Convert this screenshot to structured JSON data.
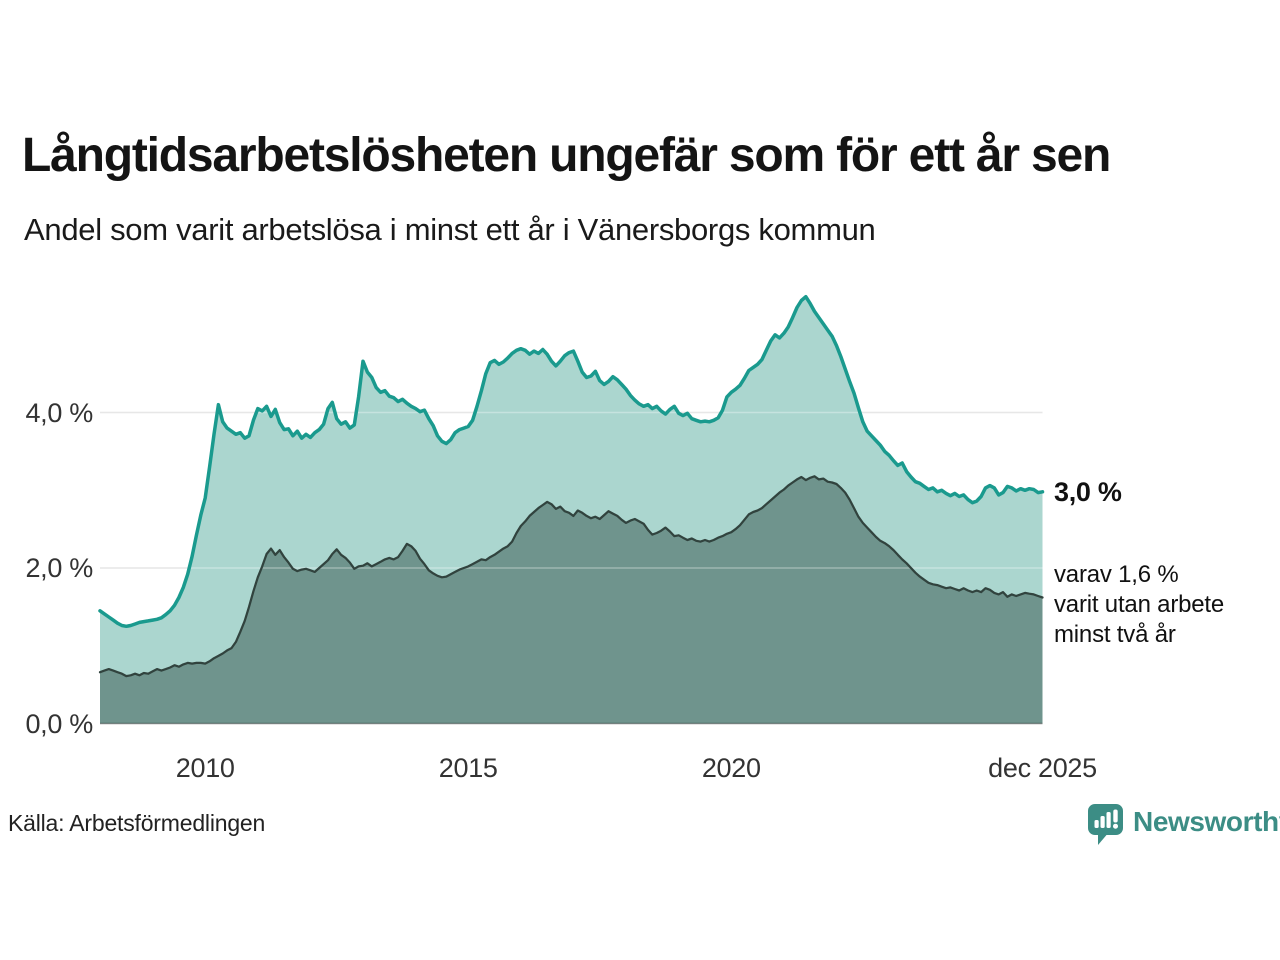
{
  "title": "Långtidsarbetslösheten ungefär som för ett år sen",
  "subtitle": "Andel som varit arbetslösa i minst ett år i Vänersborgs kommun",
  "source": "Källa: Arbetsförmedlingen",
  "branding": {
    "name": "Newsworthy",
    "color": "#3c8d85"
  },
  "annotations": {
    "end_value_label": "3,0 %",
    "sub_lines": [
      "varav 1,6 %",
      "varit utan arbete",
      "minst två år"
    ]
  },
  "colors": {
    "series1_line": "#1a9a8e",
    "series1_fill": "#abd6cf",
    "series2_line": "#31433e",
    "series2_fill": "#6f948d",
    "gridline": "#dcdcdc",
    "axis_text": "#333333"
  },
  "chart_data": {
    "type": "area",
    "title": "Långtidsarbetslösheten ungefär som för ett år sen",
    "subtitle": "Andel som varit arbetslösa i minst ett år i Vänersborgs kommun",
    "x_start": "2008-01",
    "x_end": "2025-12",
    "interval": "monthly",
    "ylim": [
      0,
      5.7
    ],
    "grid": "horizontal",
    "legend_position": "none (direct labels at line ends)",
    "y_ticks": [
      {
        "label": "0,0 %",
        "value": 0
      },
      {
        "label": "2,0 %",
        "value": 2
      },
      {
        "label": "4,0 %",
        "value": 4
      }
    ],
    "x_ticks": [
      {
        "label": "2010",
        "month_index": 24
      },
      {
        "label": "2015",
        "month_index": 84
      },
      {
        "label": "2020",
        "month_index": 144
      },
      {
        "label": "dec 2025",
        "month_index": 215
      }
    ],
    "series": [
      {
        "name": "Arbetslösa minst ett år (andel, %)",
        "end_label": "3,0 %",
        "color": "#1a9a8e",
        "fill": "#abd6cf",
        "stroke_width": 3.5,
        "values": [
          1.45,
          1.41,
          1.37,
          1.33,
          1.29,
          1.26,
          1.25,
          1.26,
          1.28,
          1.3,
          1.31,
          1.32,
          1.33,
          1.34,
          1.36,
          1.4,
          1.45,
          1.52,
          1.62,
          1.75,
          1.92,
          2.15,
          2.42,
          2.68,
          2.9,
          3.3,
          3.72,
          4.1,
          3.88,
          3.8,
          3.76,
          3.72,
          3.74,
          3.67,
          3.7,
          3.9,
          4.05,
          4.02,
          4.08,
          3.95,
          4.04,
          3.87,
          3.78,
          3.79,
          3.7,
          3.76,
          3.67,
          3.72,
          3.68,
          3.74,
          3.78,
          3.85,
          4.05,
          4.13,
          3.92,
          3.85,
          3.88,
          3.8,
          3.84,
          4.2,
          4.66,
          4.52,
          4.45,
          4.32,
          4.26,
          4.28,
          4.21,
          4.19,
          4.14,
          4.17,
          4.12,
          4.08,
          4.05,
          4.01,
          4.03,
          3.92,
          3.83,
          3.7,
          3.63,
          3.6,
          3.65,
          3.74,
          3.78,
          3.8,
          3.82,
          3.9,
          4.08,
          4.28,
          4.5,
          4.64,
          4.67,
          4.62,
          4.65,
          4.7,
          4.76,
          4.8,
          4.82,
          4.8,
          4.75,
          4.79,
          4.76,
          4.81,
          4.75,
          4.66,
          4.6,
          4.66,
          4.73,
          4.77,
          4.79,
          4.66,
          4.52,
          4.45,
          4.47,
          4.53,
          4.41,
          4.36,
          4.4,
          4.46,
          4.42,
          4.36,
          4.3,
          4.22,
          4.16,
          4.11,
          4.08,
          4.1,
          4.05,
          4.08,
          4.02,
          3.98,
          4.04,
          4.08,
          3.99,
          3.96,
          3.99,
          3.92,
          3.9,
          3.88,
          3.89,
          3.88,
          3.9,
          3.93,
          4.03,
          4.2,
          4.26,
          4.3,
          4.35,
          4.44,
          4.54,
          4.58,
          4.62,
          4.68,
          4.8,
          4.92,
          5.0,
          4.96,
          5.02,
          5.1,
          5.22,
          5.35,
          5.44,
          5.49,
          5.4,
          5.3,
          5.22,
          5.14,
          5.06,
          4.98,
          4.86,
          4.72,
          4.56,
          4.4,
          4.25,
          4.06,
          3.88,
          3.76,
          3.7,
          3.64,
          3.58,
          3.5,
          3.45,
          3.38,
          3.32,
          3.35,
          3.24,
          3.17,
          3.11,
          3.09,
          3.05,
          3.01,
          3.03,
          2.98,
          3.0,
          2.96,
          2.93,
          2.96,
          2.92,
          2.94,
          2.88,
          2.84,
          2.86,
          2.92,
          3.03,
          3.06,
          3.03,
          2.94,
          2.97,
          3.05,
          3.03,
          2.99,
          3.02,
          3.0,
          3.02,
          3.01,
          2.97,
          2.98
        ]
      },
      {
        "name": "varav arbetslösa minst två år (andel, %)",
        "end_label": "varav 1,6 % varit utan arbete minst två år",
        "color": "#31433e",
        "fill": "#6f948d",
        "stroke_width": 2.25,
        "values": [
          0.66,
          0.68,
          0.7,
          0.68,
          0.66,
          0.64,
          0.61,
          0.62,
          0.64,
          0.62,
          0.65,
          0.64,
          0.67,
          0.7,
          0.68,
          0.7,
          0.72,
          0.75,
          0.73,
          0.76,
          0.78,
          0.77,
          0.78,
          0.78,
          0.77,
          0.8,
          0.84,
          0.87,
          0.9,
          0.94,
          0.97,
          1.05,
          1.18,
          1.32,
          1.5,
          1.7,
          1.88,
          2.02,
          2.18,
          2.25,
          2.17,
          2.23,
          2.14,
          2.07,
          1.99,
          1.96,
          1.98,
          1.99,
          1.97,
          1.95,
          2.0,
          2.05,
          2.1,
          2.18,
          2.24,
          2.17,
          2.13,
          2.07,
          1.99,
          2.02,
          2.03,
          2.06,
          2.02,
          2.05,
          2.08,
          2.11,
          2.13,
          2.11,
          2.14,
          2.22,
          2.31,
          2.28,
          2.22,
          2.12,
          2.05,
          1.97,
          1.93,
          1.9,
          1.88,
          1.89,
          1.92,
          1.95,
          1.98,
          2.0,
          2.02,
          2.05,
          2.08,
          2.11,
          2.1,
          2.14,
          2.17,
          2.21,
          2.25,
          2.28,
          2.34,
          2.45,
          2.54,
          2.6,
          2.67,
          2.72,
          2.77,
          2.81,
          2.85,
          2.82,
          2.76,
          2.79,
          2.73,
          2.71,
          2.67,
          2.74,
          2.71,
          2.67,
          2.64,
          2.66,
          2.63,
          2.68,
          2.73,
          2.7,
          2.67,
          2.62,
          2.58,
          2.61,
          2.63,
          2.6,
          2.57,
          2.49,
          2.43,
          2.45,
          2.48,
          2.52,
          2.47,
          2.41,
          2.42,
          2.39,
          2.36,
          2.38,
          2.35,
          2.34,
          2.36,
          2.34,
          2.36,
          2.39,
          2.41,
          2.44,
          2.46,
          2.5,
          2.55,
          2.62,
          2.69,
          2.72,
          2.74,
          2.77,
          2.82,
          2.87,
          2.92,
          2.97,
          3.01,
          3.06,
          3.1,
          3.14,
          3.17,
          3.13,
          3.16,
          3.18,
          3.14,
          3.15,
          3.11,
          3.1,
          3.08,
          3.03,
          2.97,
          2.88,
          2.77,
          2.66,
          2.58,
          2.52,
          2.46,
          2.4,
          2.35,
          2.32,
          2.28,
          2.23,
          2.17,
          2.11,
          2.06,
          2.0,
          1.94,
          1.89,
          1.85,
          1.81,
          1.79,
          1.78,
          1.76,
          1.74,
          1.75,
          1.73,
          1.71,
          1.74,
          1.71,
          1.69,
          1.71,
          1.69,
          1.74,
          1.72,
          1.68,
          1.66,
          1.69,
          1.63,
          1.66,
          1.64,
          1.66,
          1.68,
          1.67,
          1.66,
          1.64,
          1.62
        ]
      }
    ]
  }
}
